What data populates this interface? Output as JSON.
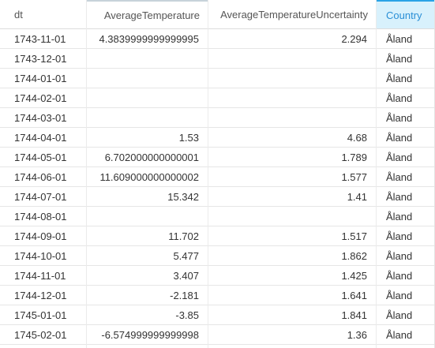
{
  "columns": [
    {
      "label": "dt"
    },
    {
      "label": "AverageTemperature"
    },
    {
      "label": "AverageTemperatureUncertainty"
    },
    {
      "label": "Country"
    }
  ],
  "colors": {
    "active_header_bg": "#d8f1fc",
    "active_header_text": "#2a8fd6",
    "grid_line": "#e6e6e6"
  },
  "rows": [
    [
      "1743-11-01",
      "4.3839999999999995",
      "2.294",
      "Åland"
    ],
    [
      "1743-12-01",
      "",
      "",
      "Åland"
    ],
    [
      "1744-01-01",
      "",
      "",
      "Åland"
    ],
    [
      "1744-02-01",
      "",
      "",
      "Åland"
    ],
    [
      "1744-03-01",
      "",
      "",
      "Åland"
    ],
    [
      "1744-04-01",
      "1.53",
      "4.68",
      "Åland"
    ],
    [
      "1744-05-01",
      "6.702000000000001",
      "1.789",
      "Åland"
    ],
    [
      "1744-06-01",
      "11.609000000000002",
      "1.577",
      "Åland"
    ],
    [
      "1744-07-01",
      "15.342",
      "1.41",
      "Åland"
    ],
    [
      "1744-08-01",
      "",
      "",
      "Åland"
    ],
    [
      "1744-09-01",
      "11.702",
      "1.517",
      "Åland"
    ],
    [
      "1744-10-01",
      "5.477",
      "1.862",
      "Åland"
    ],
    [
      "1744-11-01",
      "3.407",
      "1.425",
      "Åland"
    ],
    [
      "1744-12-01",
      "-2.181",
      "1.641",
      "Åland"
    ],
    [
      "1745-01-01",
      "-3.85",
      "1.841",
      "Åland"
    ],
    [
      "1745-02-01",
      "-6.574999999999998",
      "1.36",
      "Åland"
    ]
  ]
}
